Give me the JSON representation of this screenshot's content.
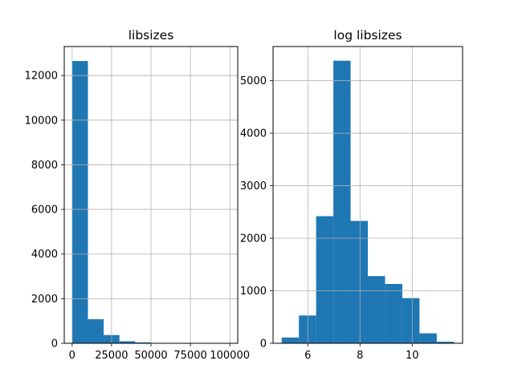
{
  "chart_data": [
    {
      "type": "bar",
      "title": "libsizes",
      "xlabel": "",
      "ylabel": "",
      "grid": true,
      "bar_color": "#1f77b4",
      "xlim": [
        -5000,
        105000
      ],
      "ylim": [
        0,
        13300
      ],
      "xticks": [
        0,
        25000,
        50000,
        75000,
        100000
      ],
      "xtick_labels": [
        "0",
        "25000",
        "50000",
        "75000",
        "100000"
      ],
      "yticks": [
        0,
        2000,
        4000,
        6000,
        8000,
        10000,
        12000
      ],
      "ytick_labels": [
        "0",
        "2000",
        "4000",
        "6000",
        "8000",
        "10000",
        "12000"
      ],
      "bin_edges": [
        0,
        10000,
        20000,
        30000,
        40000,
        50000,
        60000,
        70000,
        80000,
        90000,
        100000
      ],
      "values": [
        12650,
        1080,
        370,
        90,
        40,
        15,
        8,
        5,
        3,
        2
      ]
    },
    {
      "type": "bar",
      "title": "log libsizes",
      "xlabel": "",
      "ylabel": "",
      "grid": true,
      "bar_color": "#1f77b4",
      "xlim": [
        4.67,
        11.93
      ],
      "ylim": [
        0,
        5650
      ],
      "xticks": [
        6,
        8,
        10
      ],
      "xtick_labels": [
        "6",
        "8",
        "10"
      ],
      "yticks": [
        0,
        1000,
        2000,
        3000,
        4000,
        5000
      ],
      "ytick_labels": [
        "0",
        "1000",
        "2000",
        "3000",
        "4000",
        "5000"
      ],
      "bin_edges": [
        5.0,
        5.66,
        6.32,
        6.98,
        7.64,
        8.3,
        8.96,
        9.62,
        10.28,
        10.94,
        11.6
      ],
      "values": [
        110,
        530,
        2420,
        5380,
        2330,
        1280,
        1130,
        860,
        190,
        30
      ]
    }
  ]
}
